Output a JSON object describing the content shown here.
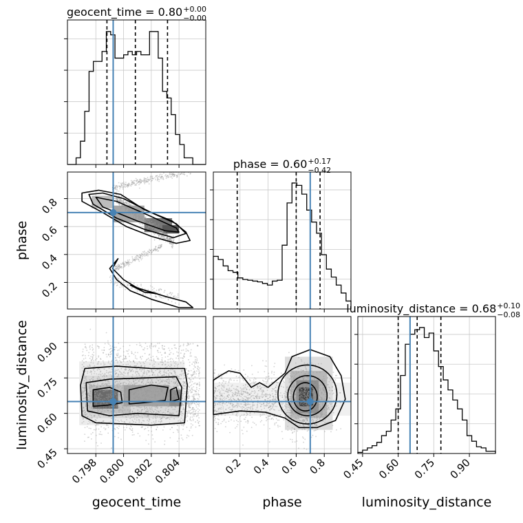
{
  "chart_data": {
    "type": "corner",
    "parameters": [
      "geocent_time",
      "phase",
      "luminosity_distance"
    ],
    "axis_labels": {
      "x": [
        "geocent_time",
        "phase",
        "luminosity_distance"
      ],
      "y": [
        "phase",
        "luminosity_distance"
      ]
    },
    "ranges": {
      "geocent_time": [
        0.79595,
        0.80593
      ],
      "phase": [
        0.01,
        0.99
      ],
      "luminosity_distance": [
        0.43,
        1.01
      ]
    },
    "ticks": {
      "geocent_time": [
        0.798,
        0.8,
        0.802,
        0.804
      ],
      "phase": [
        0.2,
        0.4,
        0.6,
        0.8
      ],
      "luminosity_distance": [
        0.45,
        0.6,
        0.75,
        0.9
      ]
    },
    "tick_labels": {
      "geocent_time": [
        "0.798",
        "0.800",
        "0.802",
        "0.804"
      ],
      "phase": [
        "0.2",
        "0.4",
        "0.6",
        "0.8"
      ],
      "luminosity_distance": [
        "0.45",
        "0.60",
        "0.75",
        "0.90"
      ]
    },
    "titles": [
      {
        "param": "geocent_time",
        "label": "geocent_time = 0.80",
        "plus": "+0.00",
        "minus": "−0.00"
      },
      {
        "param": "phase",
        "label": "phase = 0.60",
        "plus": "+0.17",
        "minus": "−0.42"
      },
      {
        "param": "luminosity_distance",
        "label": "luminosity_distance = 0.68",
        "plus": "+0.10",
        "minus": "−0.08"
      }
    ],
    "truths": {
      "geocent_time": 0.79925,
      "phase": 0.7,
      "luminosity_distance": 0.65
    },
    "quantiles": {
      "geocent_time": [
        0.7988,
        0.80085,
        0.80317
      ],
      "phase": [
        0.18,
        0.6,
        0.77
      ],
      "luminosity_distance": [
        0.6,
        0.68,
        0.78
      ]
    },
    "histograms": {
      "geocent_time": {
        "edges_range": [
          0.79595,
          0.80593
        ],
        "counts": [
          0,
          0,
          2,
          7,
          16,
          28,
          31,
          31,
          34,
          40,
          39,
          32,
          32,
          33,
          34,
          33,
          34,
          33,
          33,
          40,
          40,
          32,
          22,
          20,
          15,
          9,
          6,
          2,
          2,
          0,
          0,
          0
        ]
      },
      "phase": {
        "edges_range": [
          0.01,
          0.99
        ],
        "counts": [
          66,
          62,
          54,
          48,
          46,
          39,
          37,
          36,
          35,
          34,
          32,
          30,
          35,
          36,
          80,
          133,
          158,
          155,
          144,
          124,
          109,
          95,
          68,
          50,
          40,
          30,
          20,
          10
        ]
      },
      "luminosity_distance": {
        "edges_range": [
          0.43,
          1.01
        ],
        "counts": [
          1,
          3,
          5,
          7,
          10,
          16,
          20,
          30,
          40,
          70,
          98,
          107,
          111,
          113,
          104,
          108,
          92,
          78,
          66,
          57,
          48,
          40,
          30,
          16,
          11,
          6,
          5,
          2,
          2
        ]
      }
    },
    "grid": true
  }
}
